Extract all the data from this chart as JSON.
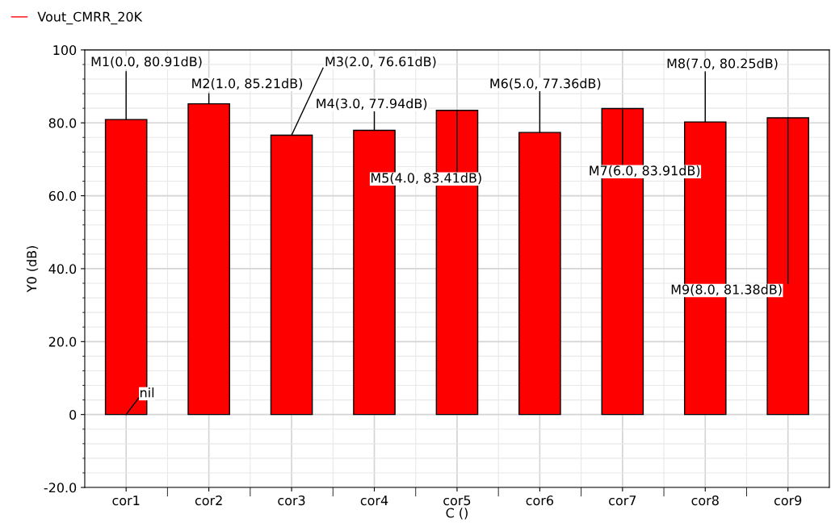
{
  "chart_data": {
    "type": "bar",
    "categories": [
      "cor1",
      "cor2",
      "cor3",
      "cor4",
      "cor5",
      "cor6",
      "cor7",
      "cor8",
      "cor9"
    ],
    "series": [
      {
        "name": "Vout_CMRR_20K",
        "color": "#ff0000",
        "values": [
          80.91,
          85.21,
          76.61,
          77.94,
          83.41,
          77.36,
          83.91,
          80.25,
          81.38
        ]
      }
    ],
    "xlabel": "C ()",
    "ylabel": "Y0 (dB)",
    "ylim": [
      -20,
      100
    ],
    "yticks": [
      {
        "value": -20,
        "label": "-20.0"
      },
      0,
      {
        "value": 20,
        "label": "20.0"
      },
      {
        "value": 40,
        "label": "40.0"
      },
      {
        "value": 60,
        "label": "60.0"
      },
      {
        "value": 80,
        "label": "80.0"
      },
      100
    ],
    "annotations": [
      {
        "text": "M1(0.0, 80.91dB)",
        "x": "cor1",
        "y": 80.91
      },
      {
        "text": "M2(1.0, 85.21dB)",
        "x": "cor2",
        "y": 85.21
      },
      {
        "text": "M3(2.0, 76.61dB)",
        "x": "cor3",
        "y": 76.61
      },
      {
        "text": "M4(3.0, 77.94dB)",
        "x": "cor4",
        "y": 77.94
      },
      {
        "text": "M5(4.0, 83.41dB)",
        "x": "cor5",
        "y": 83.41
      },
      {
        "text": "M6(5.0, 77.36dB)",
        "x": "cor6",
        "y": 77.36
      },
      {
        "text": "M7(6.0, 83.91dB)",
        "x": "cor7",
        "y": 83.91
      },
      {
        "text": "M8(7.0, 80.25dB)",
        "x": "cor8",
        "y": 80.25
      },
      {
        "text": "M9(8.0, 81.38dB)",
        "x": "cor9",
        "y": 81.38
      },
      {
        "text": "nil",
        "x": "cor1",
        "y": 0
      }
    ],
    "grid": true,
    "legend": "top left"
  }
}
